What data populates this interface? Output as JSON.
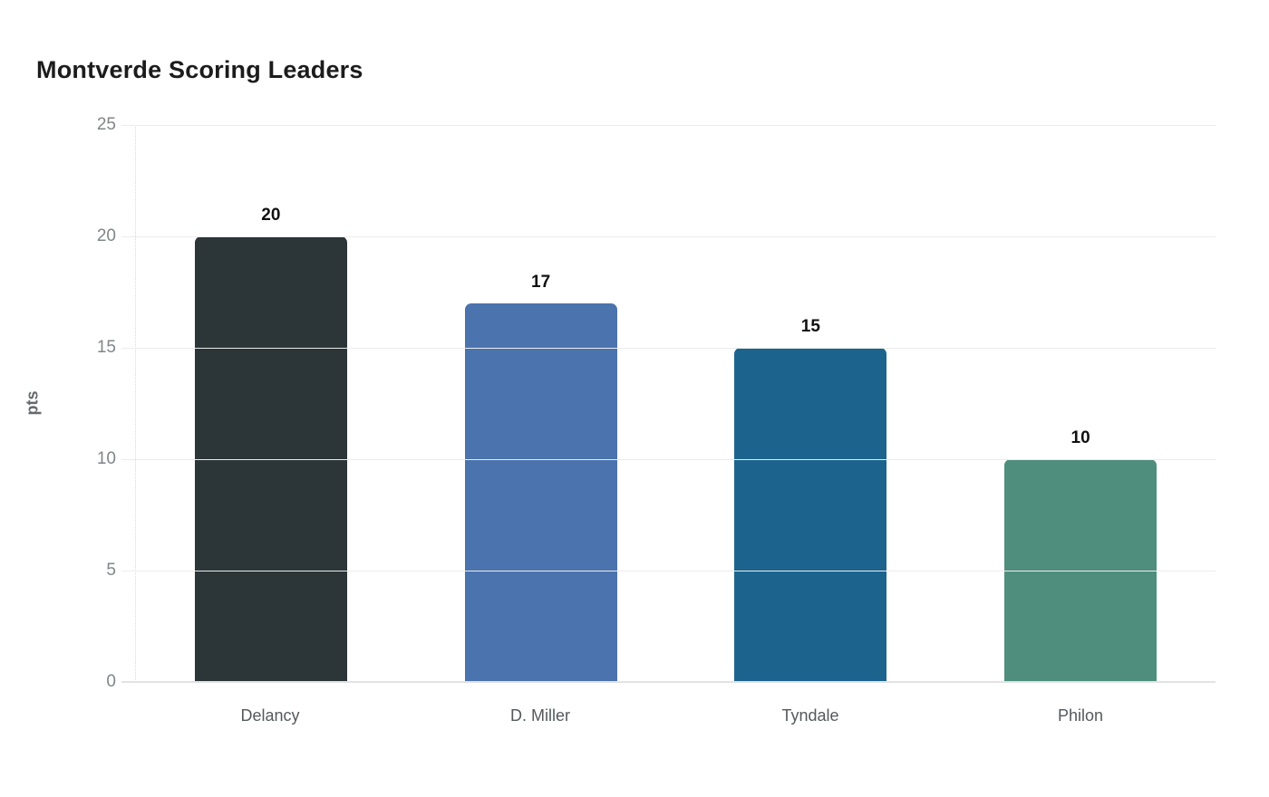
{
  "chart_data": {
    "type": "bar",
    "title": "Montverde Scoring Leaders",
    "categories": [
      "Delancy",
      "D. Miller",
      "Tyndale",
      "Philon"
    ],
    "values": [
      20,
      17,
      15,
      10
    ],
    "value_labels": [
      "20",
      "17",
      "15",
      "10"
    ],
    "bar_colors": [
      "#2c3537",
      "#4b73ad",
      "#1c648e",
      "#4f8e7d"
    ],
    "xlabel": "",
    "ylabel": "pts",
    "ylim": [
      0,
      25
    ],
    "yticks": [
      0,
      5,
      10,
      15,
      20,
      25
    ],
    "grid": true,
    "legend": "none"
  },
  "colors": {
    "background": "#ffffff",
    "title_text": "#1c1c1c",
    "axis_label_text": "#666a6d",
    "tick_text": "#828587",
    "category_text": "#55595c",
    "value_label_text": "#111111",
    "gridline": "#ececec",
    "baseline": "#e2e2e2"
  }
}
